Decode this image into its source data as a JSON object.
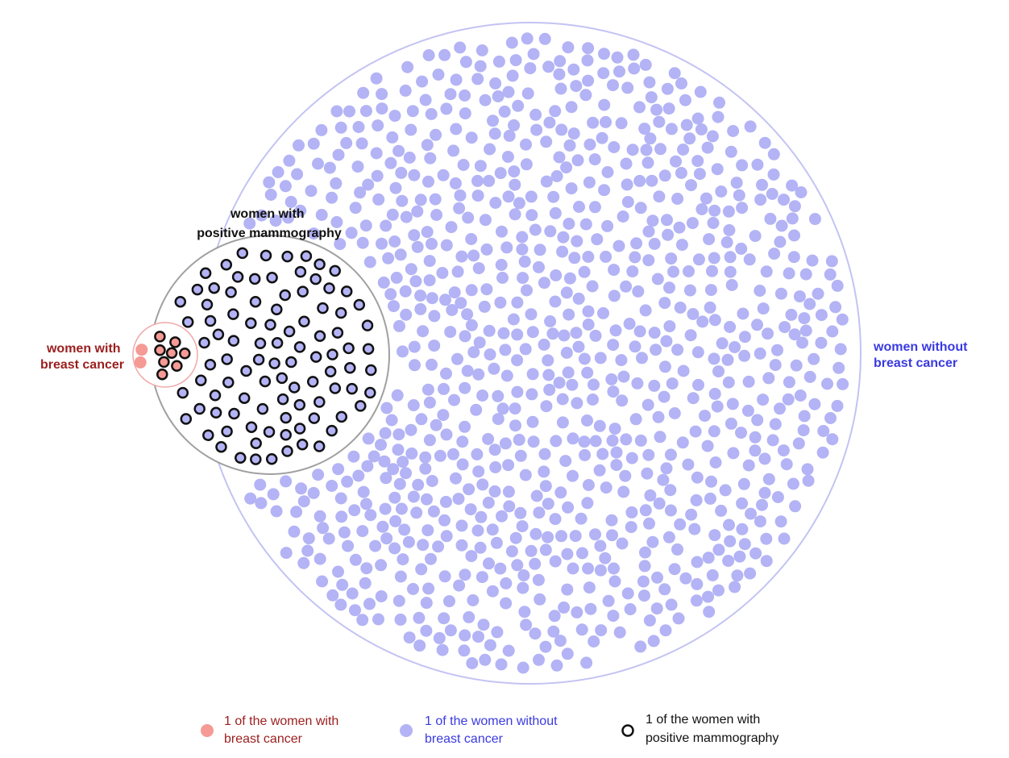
{
  "colors": {
    "cancer": "#f59a94",
    "cancer_text": "#9b1e1e",
    "no_cancer": "#b3b3f5",
    "no_cancer_text": "#3a3ae0",
    "no_cancer_circle": "#c3c3f3",
    "mammo_circle": "#a0a0a0",
    "cancer_circle": "#f0a8a8",
    "outline": "#111111",
    "label": "#111111"
  },
  "groups": {
    "cancer": {
      "line1": "women with",
      "line2": "breast cancer"
    },
    "no_cancer": {
      "line1": "women without",
      "line2": "breast cancer"
    },
    "mammo": {
      "line1": "women with",
      "line2": "positive mammography"
    }
  },
  "counts": {
    "cancer_positive": 8,
    "cancer_negative": 2,
    "no_cancer_positive": 95,
    "no_cancer_negative": 895
  },
  "legend": [
    {
      "key": "cancer",
      "icon": "pink-dot",
      "line1": "1 of the women with",
      "line2": "breast cancer"
    },
    {
      "key": "no_cancer",
      "icon": "lavender-dot",
      "line1": "1 of the women without",
      "line2": "breast cancer"
    },
    {
      "key": "mammo",
      "icon": "black-ring",
      "line1": "1 of the women with",
      "line2": "positive mammography"
    }
  ]
}
